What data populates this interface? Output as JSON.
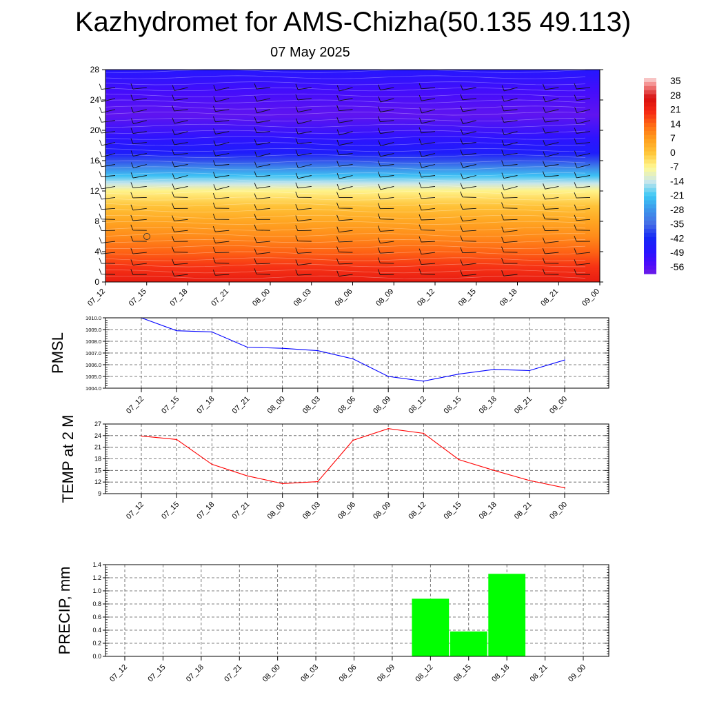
{
  "header": {
    "title": "Kazhydromet for AMS-Chizha(50.135 49.113)",
    "date": "07 May 2025"
  },
  "time_labels": [
    "07_12",
    "07_15",
    "07_18",
    "07_21",
    "08_00",
    "08_03",
    "08_06",
    "08_09",
    "08_12",
    "08_15",
    "08_18",
    "08_21",
    "09_00"
  ],
  "chart_data": [
    {
      "type": "heatmap",
      "title": "Kazhydromet for AMS-Chizha(50.135 49.113)",
      "subtitle": "07 May 2025",
      "x": [
        "07_12",
        "07_15",
        "07_18",
        "07_21",
        "08_00",
        "08_03",
        "08_06",
        "08_09",
        "08_12",
        "08_15",
        "08_18",
        "08_21",
        "09_00"
      ],
      "y_ticks": [
        0,
        4,
        8,
        12,
        16,
        20,
        24,
        28
      ],
      "ylim": [
        0,
        28
      ],
      "colorbar_ticks": [
        35,
        28,
        21,
        14,
        7,
        0,
        -7,
        -14,
        -21,
        -28,
        -35,
        -42,
        -49,
        -56
      ],
      "colorbar_range": [
        -60,
        38
      ],
      "temperature_by_height": [
        {
          "h": 0,
          "t": 24
        },
        {
          "h": 2,
          "t": 20
        },
        {
          "h": 4,
          "t": 15
        },
        {
          "h": 6,
          "t": 10
        },
        {
          "h": 8,
          "t": 6
        },
        {
          "h": 10,
          "t": 1
        },
        {
          "h": 12,
          "t": -6
        },
        {
          "h": 13,
          "t": -14
        },
        {
          "h": 14,
          "t": -22
        },
        {
          "h": 15,
          "t": -30
        },
        {
          "h": 16,
          "t": -38
        },
        {
          "h": 17,
          "t": -46
        },
        {
          "h": 19,
          "t": -50
        },
        {
          "h": 22,
          "t": -58
        },
        {
          "h": 25,
          "t": -54
        },
        {
          "h": 28,
          "t": -48
        }
      ],
      "wind_barbs": true,
      "grid": false
    },
    {
      "type": "line",
      "ylabel": "PMSL",
      "x": [
        "07_12",
        "07_15",
        "07_18",
        "07_21",
        "08_00",
        "08_03",
        "08_06",
        "08_09",
        "08_12",
        "08_15",
        "08_18",
        "08_21",
        "09_00"
      ],
      "values": [
        1010.0,
        1008.9,
        1008.8,
        1007.5,
        1007.4,
        1007.2,
        1006.5,
        1005.0,
        1004.6,
        1005.2,
        1005.6,
        1005.5,
        1006.4
      ],
      "ylim": [
        1004.0,
        1010.0
      ],
      "yticks": [
        "1004.0",
        "1005.0",
        "1006.0",
        "1007.0",
        "1008.0",
        "1009.0",
        "1010.0"
      ],
      "color": "#0000ff",
      "grid": true
    },
    {
      "type": "line",
      "ylabel": "TEMP at 2 M",
      "x": [
        "07_12",
        "07_15",
        "07_18",
        "07_21",
        "08_00",
        "08_03",
        "08_06",
        "08_09",
        "08_12",
        "08_15",
        "08_18",
        "08_21",
        "09_00"
      ],
      "values": [
        23.9,
        23.0,
        16.6,
        13.6,
        11.6,
        12.1,
        22.8,
        25.8,
        24.6,
        17.8,
        15.0,
        12.4,
        10.5
      ],
      "ylim": [
        9,
        27
      ],
      "yticks": [
        "9",
        "12",
        "15",
        "18",
        "21",
        "24",
        "27"
      ],
      "color": "#ff0000",
      "grid": true
    },
    {
      "type": "bar",
      "ylabel": "PRECIP, mm",
      "categories": [
        "07_12",
        "07_15",
        "07_18",
        "07_21",
        "08_00",
        "08_03",
        "08_06",
        "08_09",
        "08_12",
        "08_15",
        "08_18",
        "08_21",
        "09_00"
      ],
      "values": [
        0,
        0,
        0,
        0,
        0,
        0,
        0,
        0,
        0.88,
        0.38,
        1.26,
        0,
        0
      ],
      "ylim": [
        0,
        1.4
      ],
      "yticks": [
        "0.0",
        "0.2",
        "0.4",
        "0.6",
        "0.8",
        "1.0",
        "1.2",
        "1.4"
      ],
      "color": "#00ff00",
      "grid": true
    }
  ]
}
